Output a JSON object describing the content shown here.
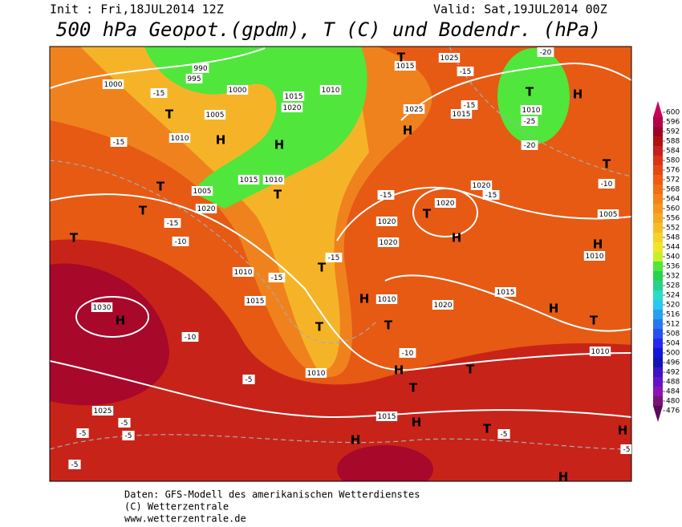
{
  "header": {
    "init": "Init : Fri,18JUL2014 12Z",
    "valid": "Valid: Sat,19JUL2014 00Z",
    "title": "500 hPa Geopot.(gpdm), T (C) und Bodendr. (hPa)"
  },
  "map": {
    "isobars": [
      "1000",
      "990",
      "995",
      "1000",
      "1005",
      "1010",
      "1015",
      "1020",
      "1010",
      "1015",
      "1025",
      "1025",
      "1015",
      "1010",
      "1005",
      "1020",
      "1015",
      "1010",
      "1020",
      "1020",
      "1020",
      "1020",
      "1010",
      "1015",
      "1030",
      "1010",
      "1020",
      "1015",
      "1005",
      "1010",
      "1010",
      "1010",
      "1015",
      "1025"
    ],
    "temperatures": [
      "-15",
      "-15",
      "-10",
      "-15",
      "-15",
      "-15",
      "-15",
      "-15",
      "-15",
      "-15",
      "-20",
      "-20",
      "-25",
      "-10",
      "-10",
      "-10",
      "-5",
      "-5",
      "-5",
      "-5",
      "-5",
      "-5",
      "-5"
    ],
    "highs": [
      "H",
      "H",
      "H",
      "H",
      "H",
      "H",
      "H",
      "H",
      "H",
      "H",
      "H",
      "H",
      "H",
      "H"
    ],
    "lows": [
      "T",
      "T",
      "T",
      "T",
      "T",
      "T",
      "T",
      "T",
      "T",
      "T",
      "T",
      "T",
      "T",
      "T",
      "T",
      "T"
    ]
  },
  "legend": {
    "ticks": [
      600,
      596,
      592,
      588,
      584,
      580,
      576,
      572,
      568,
      564,
      560,
      556,
      552,
      548,
      544,
      540,
      536,
      532,
      528,
      524,
      520,
      516,
      512,
      508,
      504,
      500,
      496,
      492,
      488,
      484,
      480,
      476
    ],
    "colors": [
      "#c8005a",
      "#b4004b",
      "#a00028",
      "#b40f0f",
      "#c81e1e",
      "#dc3214",
      "#e64614",
      "#f05a14",
      "#f06e14",
      "#f58219",
      "#f5961e",
      "#f5aa23",
      "#f5be28",
      "#f5d228",
      "#f0e628",
      "#c8f028",
      "#50e63c",
      "#28d250",
      "#28d28c",
      "#28dcc8",
      "#28c8f0",
      "#28a0f0",
      "#2878f0",
      "#2850f0",
      "#2828f0",
      "#1414dc",
      "#1414b4",
      "#3c14c8",
      "#6414c8",
      "#8c14b4",
      "#781478",
      "#5a0a5a"
    ]
  },
  "footer": {
    "lines": [
      "Daten: GFS-Modell des amerikanischen Wetterdienstes",
      "(C) Wetterzentrale",
      "www.wetterzentrale.de"
    ]
  }
}
